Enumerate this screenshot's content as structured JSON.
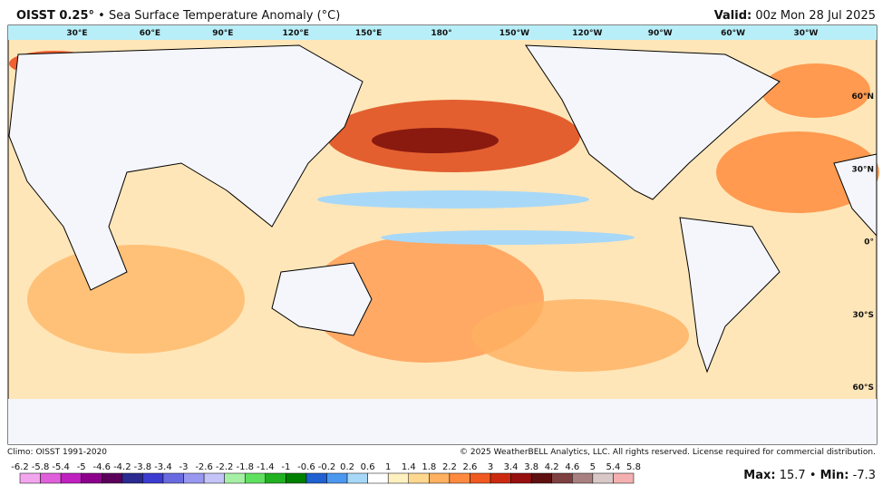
{
  "header": {
    "title_bold": "OISST 0.25°",
    "title_sep": "•",
    "title_rest": "Sea Surface Temperature Anomaly (°C)",
    "valid_label": "Valid:",
    "valid_value": "00z Mon 28 Jul 2025"
  },
  "map": {
    "lon_labels": [
      "30°E",
      "60°E",
      "90°E",
      "120°E",
      "150°E",
      "180°",
      "150°W",
      "120°W",
      "90°W",
      "60°W",
      "30°W"
    ],
    "lat_labels": [
      "60°N",
      "30°N",
      "0°",
      "30°S",
      "60°S"
    ]
  },
  "footer": {
    "climo": "Climo: OISST 1991-2020",
    "copyright": "© 2025 WeatherBELL Analytics, LLC. All rights reserved. License required for commercial distribution.",
    "max_label": "Max:",
    "max_value": 15.7,
    "sep": "•",
    "min_label": "Min:",
    "min_value": -7.3
  },
  "colorbar": {
    "ticks": [
      -6.2,
      -5.8,
      -5.4,
      -5,
      -4.6,
      -4.2,
      -3.8,
      -3.4,
      -3,
      -2.6,
      -2.2,
      -1.8,
      -1.4,
      -1,
      -0.6,
      -0.2,
      0.2,
      0.6,
      1,
      1.4,
      1.8,
      2.2,
      2.6,
      3,
      3.4,
      3.8,
      4.2,
      4.6,
      5,
      5.4,
      5.8
    ],
    "colors": [
      "#f2a6ee",
      "#e060dc",
      "#c020c0",
      "#8c008c",
      "#5a005a",
      "#2a2a90",
      "#3c3cd0",
      "#6a6ae0",
      "#9898f0",
      "#c4c4f8",
      "#a6f0a6",
      "#60e060",
      "#20b020",
      "#008000",
      "#2060d0",
      "#4c98f0",
      "#a8d8f8",
      "#ffffff",
      "#fff0c0",
      "#ffd890",
      "#ffb060",
      "#ff8a40",
      "#f05a20",
      "#cc2a10",
      "#961010",
      "#5e1010",
      "#7e4040",
      "#a88080",
      "#d8c8c8",
      "#f4b0b0",
      "#d86060"
    ]
  }
}
